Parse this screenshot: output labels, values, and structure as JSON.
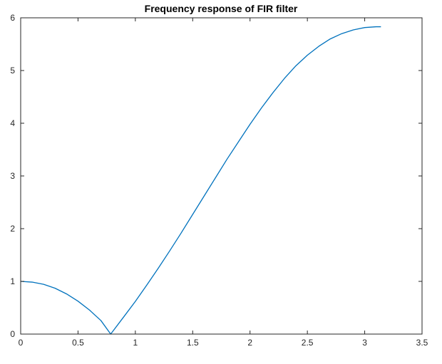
{
  "chart_data": {
    "type": "line",
    "title": "Frequency response of FIR filter",
    "xlabel": "",
    "ylabel": "",
    "xlim": [
      0,
      3.5
    ],
    "ylim": [
      0,
      6
    ],
    "xticks": [
      0,
      0.5,
      1,
      1.5,
      2,
      2.5,
      3,
      3.5
    ],
    "xtick_labels": [
      "0",
      "0.5",
      "1",
      "1.5",
      "2",
      "2.5",
      "3",
      "3.5"
    ],
    "yticks": [
      0,
      1,
      2,
      3,
      4,
      5,
      6
    ],
    "ytick_labels": [
      "0",
      "1",
      "2",
      "3",
      "4",
      "5",
      "6"
    ],
    "grid": false,
    "box": true,
    "series": [
      {
        "color": "#0072bd",
        "x": [
          0,
          0.1,
          0.2,
          0.3,
          0.4,
          0.5,
          0.6,
          0.7,
          0.785,
          0.9,
          1.0,
          1.1,
          1.2,
          1.3,
          1.4,
          1.5,
          1.6,
          1.7,
          1.8,
          1.9,
          2.0,
          2.1,
          2.2,
          2.3,
          2.4,
          2.5,
          2.6,
          2.7,
          2.8,
          2.9,
          3.0,
          3.1,
          3.1416
        ],
        "y": [
          1.0,
          0.986,
          0.944,
          0.87,
          0.762,
          0.624,
          0.456,
          0.256,
          0.0,
          0.33,
          0.62,
          0.93,
          1.25,
          1.58,
          1.92,
          2.27,
          2.62,
          2.97,
          3.32,
          3.65,
          3.98,
          4.29,
          4.58,
          4.85,
          5.09,
          5.29,
          5.46,
          5.6,
          5.7,
          5.77,
          5.815,
          5.83,
          5.83
        ]
      }
    ]
  }
}
